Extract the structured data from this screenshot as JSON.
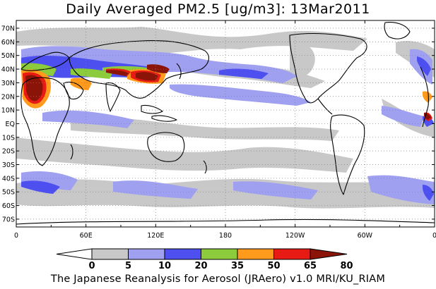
{
  "title": "Daily Averaged PM2.5 [ug/m3]: 13Mar2011",
  "credit": "The Japanese Reanalysis for Aerosol (JRAero) v1.0 MRI/KU_RIAM",
  "lat_labels": [
    "70N",
    "60N",
    "50N",
    "40N",
    "30N",
    "20N",
    "10N",
    "EQ",
    "10S",
    "20S",
    "30S",
    "40S",
    "50S",
    "60S",
    "70S"
  ],
  "lon_labels": [
    "0",
    "60E",
    "120E",
    "180",
    "120W",
    "60W",
    "0"
  ],
  "colorbar": {
    "ticks": [
      "0",
      "5",
      "10",
      "20",
      "35",
      "50",
      "65",
      "80"
    ],
    "colors": [
      "#ffffff",
      "#c8c8c8",
      "#a0a0f0",
      "#4d50ee",
      "#8ccc3c",
      "#ff9a1c",
      "#e81a14",
      "#8a1408"
    ]
  }
}
